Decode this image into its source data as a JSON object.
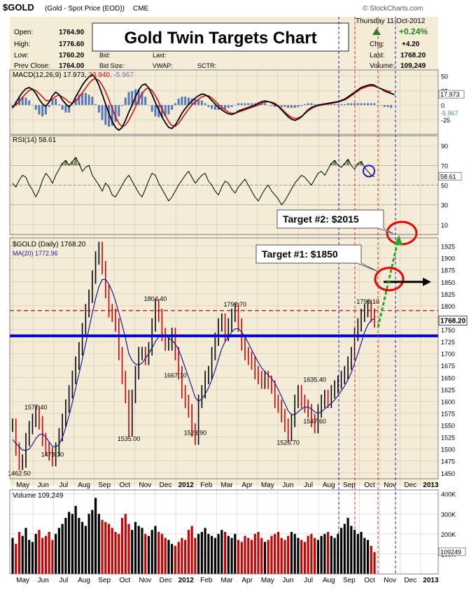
{
  "header": {
    "symbol": "$GOLD",
    "description": "(Gold - Spot Price (EOD))",
    "exchange": "CME",
    "source": "© StockCharts.com",
    "date": "Thursday 11-Oct-2012",
    "change_pct": "+0.24%",
    "quote": [
      {
        "label": "Open:",
        "value": "1764.90"
      },
      {
        "label": "High:",
        "value": "1776.60"
      },
      {
        "label": "Low:",
        "value": "1760.20"
      },
      {
        "label": "Prev Close:",
        "value": "1764.00"
      }
    ],
    "mid_labels": [
      "Bid:",
      "Last:",
      "Bid Size:",
      "VWAP:",
      "SCTR:"
    ],
    "right_quote": [
      {
        "label": "Chg:",
        "value": "+4.20"
      },
      {
        "label": "Last:",
        "value": "1768.20"
      },
      {
        "label": "Volume:",
        "value": "109,249"
      }
    ]
  },
  "annotations": {
    "title": "Gold Twin Targets Chart",
    "target1": "Target #1: $1850",
    "target2": "Target #2: $2015"
  },
  "colors": {
    "background": "#ffffff",
    "panel_bg": "#f4ecd6",
    "grid": "#c9c2b0",
    "price": "#000000",
    "price_up": "#000000",
    "price_down": "#cc0000",
    "ma": "#1a1a99",
    "macd_line": "#000000",
    "macd_signal": "#dd0000",
    "macd_hist": "#5577bb",
    "rsi_line": "#000000",
    "rsi_fill": "#5a7a3a",
    "volume_up": "#000000",
    "volume_down": "#cc0000",
    "support_line": "#0000dd",
    "resistance_line": "#cc0000",
    "target_ring": "#ee0000",
    "arrow_green": "#22aa22",
    "arrow_black": "#000000",
    "divider_blue": "#1a1acc",
    "divider_red": "#dd2222",
    "positive": "#228822"
  },
  "chart_data": [
    {
      "panel": "macd",
      "type": "line",
      "legend": "MACD(12,26,9) 17.973, 23.940, -5.967",
      "legend_parts": [
        "MACD(12,26,9) 17.973, ",
        "23.940",
        ", -5.967"
      ],
      "y_ticks": [
        "50",
        "25",
        "0",
        "-25"
      ],
      "last_values": {
        "macd": "17.973",
        "signal": "23.940",
        "hist": "-5.967"
      },
      "series": [
        {
          "name": "MACD",
          "values": [
            -5,
            4,
            14,
            22,
            28,
            30,
            27,
            20,
            10,
            2,
            -2,
            5,
            16,
            22,
            18,
            9,
            2,
            -3,
            3,
            14,
            24,
            34,
            42,
            48,
            52,
            46,
            34,
            18,
            2,
            -14,
            -28,
            -38,
            -43,
            -38,
            -26,
            -12,
            0,
            14,
            26,
            34,
            36,
            29,
            18,
            4,
            -8,
            -20,
            -30,
            -38,
            -40,
            -34,
            -24,
            -14,
            -6,
            1,
            7,
            12,
            16,
            19,
            18,
            14,
            8,
            2,
            -4,
            -8,
            -12,
            -15,
            -16,
            -14,
            -10,
            -8,
            -6,
            -4,
            -2,
            0,
            3,
            6,
            7,
            6,
            4,
            1,
            -2,
            -8,
            -14,
            -20,
            -24,
            -26,
            -24,
            -20,
            -14,
            -8,
            -4,
            -2,
            0,
            1,
            2,
            3,
            4,
            5,
            6,
            8,
            10,
            14,
            18,
            22,
            26,
            30,
            32,
            34,
            35,
            34,
            30,
            28,
            24,
            22,
            20,
            18
          ]
        },
        {
          "name": "Signal",
          "values": [
            -2,
            0,
            6,
            13,
            20,
            25,
            27,
            25,
            20,
            14,
            8,
            7,
            10,
            15,
            17,
            14,
            10,
            5,
            3,
            7,
            13,
            21,
            29,
            37,
            43,
            45,
            42,
            34,
            23,
            9,
            -6,
            -20,
            -31,
            -37,
            -34,
            -26,
            -15,
            -3,
            9,
            20,
            27,
            29,
            25,
            16,
            5,
            -7,
            -18,
            -28,
            -35,
            -36,
            -31,
            -23,
            -15,
            -7,
            0,
            5,
            10,
            14,
            16,
            16,
            12,
            7,
            1,
            -4,
            -8,
            -12,
            -14,
            -14,
            -12,
            -10,
            -8,
            -6,
            -4,
            -2,
            0,
            3,
            5,
            6,
            5,
            3,
            -1,
            -6,
            -12,
            -17,
            -21,
            -23,
            -22,
            -19,
            -15,
            -10,
            -6,
            -3,
            -1,
            0,
            1,
            2,
            3,
            4,
            5,
            7,
            9,
            12,
            16,
            20,
            24,
            28,
            30,
            32,
            33,
            32,
            30,
            28,
            26,
            24,
            23
          ]
        }
      ]
    },
    {
      "panel": "rsi",
      "type": "line",
      "legend": "RSI(14) 58.61",
      "y_ticks": [
        "90",
        "70",
        "50",
        "30",
        "10"
      ],
      "last_value": "58.61",
      "overbought": 70,
      "oversold": 30,
      "values": [
        52,
        48,
        55,
        60,
        58,
        50,
        45,
        38,
        45,
        55,
        62,
        58,
        52,
        60,
        66,
        72,
        75,
        70,
        74,
        78,
        72,
        64,
        68,
        70,
        60,
        55,
        50,
        44,
        52,
        48,
        40,
        38,
        44,
        50,
        56,
        60,
        54,
        48,
        42,
        38,
        46,
        55,
        62,
        60,
        52,
        46,
        40,
        34,
        38,
        44,
        50,
        55,
        60,
        64,
        58,
        52,
        56,
        60,
        62,
        54,
        50,
        44,
        40,
        48,
        54,
        52,
        46,
        42,
        48,
        52,
        56,
        50,
        44,
        38,
        34,
        40,
        46,
        50,
        44,
        40,
        36,
        30,
        34,
        40,
        46,
        52,
        56,
        60,
        58,
        54,
        50,
        56,
        62,
        64,
        60,
        66,
        72,
        75,
        70,
        68,
        72,
        76,
        70,
        66,
        72,
        74,
        68,
        64,
        60,
        58.61
      ]
    },
    {
      "panel": "price",
      "type": "line",
      "legend": "$GOLD (Daily) 1768.20",
      "ma_legend": "MA(20) 1772.96",
      "y_ticks": [
        "1925",
        "1900",
        "1875",
        "1850",
        "1825",
        "1800",
        "1775",
        "1750",
        "1725",
        "1700",
        "1675",
        "1650",
        "1625",
        "1600",
        "1575",
        "1550",
        "1525",
        "1500",
        "1475",
        "1450"
      ],
      "last_label": "1768.20",
      "ylim": [
        1438,
        1942
      ],
      "data_labels": [
        "1577.40",
        "1462.50",
        "1478.30",
        "1535.00",
        "1804.40",
        "1667.10",
        "1523.90",
        "1792.70",
        "1526.70",
        "1635.40",
        "1547.60",
        "1798.10"
      ],
      "support_level": 1737,
      "resistance_level": 1790,
      "target1": 1850,
      "target2": 2015,
      "series": [
        {
          "name": "$GOLD",
          "values": [
            1550,
            1500,
            1470,
            1475,
            1520,
            1545,
            1560,
            1577,
            1555,
            1520,
            1500,
            1490,
            1478,
            1500,
            1530,
            1560,
            1590,
            1620,
            1650,
            1680,
            1710,
            1750,
            1790,
            1820,
            1860,
            1900,
            1920,
            1880,
            1830,
            1790,
            1780,
            1760,
            1700,
            1650,
            1610,
            1540,
            1610,
            1660,
            1700,
            1700,
            1690,
            1710,
            1760,
            1800,
            1780,
            1740,
            1720,
            1720,
            1740,
            1700,
            1660,
            1620,
            1600,
            1580,
            1540,
            1523,
            1600,
            1620,
            1650,
            1660,
            1700,
            1730,
            1760,
            1770,
            1740,
            1760,
            1780,
            1792,
            1760,
            1720,
            1700,
            1690,
            1680,
            1660,
            1650,
            1640,
            1650,
            1640,
            1630,
            1600,
            1590,
            1570,
            1550,
            1530,
            1560,
            1600,
            1620,
            1600,
            1590,
            1580,
            1560,
            1547,
            1580,
            1600,
            1610,
            1600,
            1620,
            1630,
            1640,
            1650,
            1660,
            1680,
            1700,
            1740,
            1760,
            1780,
            1790,
            1798,
            1780,
            1768
          ]
        },
        {
          "name": "MA(20)",
          "values": [
            1520,
            1512,
            1505,
            1498,
            1497,
            1500,
            1510,
            1522,
            1530,
            1532,
            1525,
            1515,
            1506,
            1504,
            1510,
            1524,
            1545,
            1570,
            1598,
            1628,
            1658,
            1688,
            1720,
            1752,
            1785,
            1815,
            1840,
            1855,
            1855,
            1845,
            1830,
            1810,
            1785,
            1760,
            1732,
            1700,
            1685,
            1678,
            1676,
            1680,
            1690,
            1700,
            1712,
            1725,
            1735,
            1740,
            1738,
            1732,
            1728,
            1720,
            1708,
            1690,
            1670,
            1650,
            1630,
            1608,
            1600,
            1605,
            1615,
            1628,
            1645,
            1665,
            1688,
            1710,
            1725,
            1735,
            1745,
            1752,
            1752,
            1745,
            1735,
            1722,
            1708,
            1695,
            1682,
            1670,
            1662,
            1655,
            1648,
            1638,
            1625,
            1610,
            1595,
            1580,
            1572,
            1572,
            1578,
            1584,
            1588,
            1588,
            1584,
            1578,
            1575,
            1578,
            1584,
            1590,
            1596,
            1603,
            1612,
            1622,
            1632,
            1645,
            1660,
            1680,
            1700,
            1722,
            1745,
            1760,
            1770,
            1773
          ]
        }
      ]
    },
    {
      "panel": "volume",
      "type": "bar",
      "legend": "Volume 109,249",
      "y_ticks": [
        "400K",
        "300K",
        "200K",
        "100K"
      ],
      "last_label": "109249",
      "ylim": [
        0,
        420000
      ],
      "values": [
        180000,
        150000,
        210000,
        190000,
        230000,
        170000,
        160000,
        200000,
        220000,
        180000,
        190000,
        210000,
        170000,
        200000,
        230000,
        250000,
        280000,
        310000,
        300000,
        340000,
        280000,
        260000,
        240000,
        300000,
        320000,
        380000,
        300000,
        270000,
        260000,
        250000,
        230000,
        210000,
        200000,
        280000,
        300000,
        250000,
        220000,
        260000,
        240000,
        230000,
        200000,
        190000,
        220000,
        240000,
        210000,
        200000,
        180000,
        170000,
        150000,
        140000,
        160000,
        180000,
        170000,
        220000,
        240000,
        180000,
        200000,
        210000,
        230000,
        200000,
        190000,
        180000,
        200000,
        220000,
        210000,
        190000,
        180000,
        200000,
        170000,
        160000,
        190000,
        180000,
        170000,
        200000,
        210000,
        180000,
        160000,
        170000,
        190000,
        200000,
        210000,
        180000,
        170000,
        190000,
        210000,
        200000,
        180000,
        170000,
        160000,
        190000,
        200000,
        180000,
        170000,
        190000,
        200000,
        210000,
        190000,
        180000,
        200000,
        230000,
        250000,
        280000,
        240000,
        220000,
        200000,
        210000,
        180000,
        170000,
        140000,
        109249
      ]
    }
  ],
  "x_axis": {
    "labels": [
      "May",
      "Jun",
      "Jul",
      "Aug",
      "Sep",
      "Oct",
      "Nov",
      "Dec",
      "2012",
      "Feb",
      "Mar",
      "Apr",
      "May",
      "Jun",
      "Jul",
      "Aug",
      "Sep",
      "Oct",
      "Nov",
      "Dec",
      "2013"
    ],
    "bold": [
      "2012",
      "2013"
    ]
  }
}
